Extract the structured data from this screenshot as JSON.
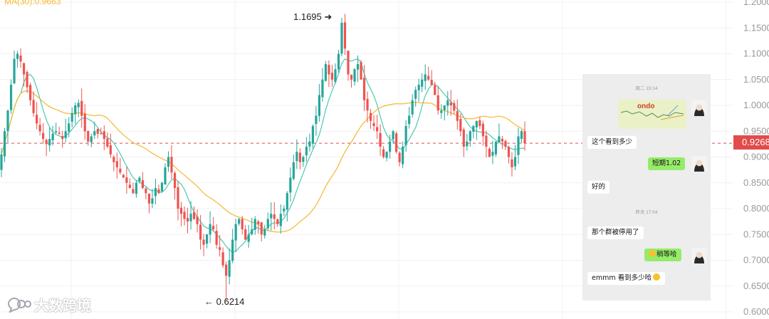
{
  "indicator_label": "MA(30):0.9663",
  "annotations": {
    "high": "1.1695",
    "low": "0.6214"
  },
  "current_price": "0.9268",
  "watermark_text": "大数跨境",
  "colors": {
    "up": "#26a69a",
    "down": "#ef5350",
    "ma_fast": "#4ec9b0",
    "ma_slow": "#f5b82e",
    "price_line": "#e24b4b"
  },
  "chat": {
    "time_1": "周二 15:14",
    "image_label": "ondo",
    "msg_1": "这个看到多少",
    "msg_2": "短期1.02",
    "msg_3": "好的",
    "time_2": "昨天 17:04",
    "msg_4": "那个群被停用了",
    "msg_5": "稍等哈",
    "msg_6": "emmm 看到多少哈"
  },
  "chart_data": {
    "type": "candlestick",
    "y_axis": {
      "min": 0.6,
      "max": 1.2,
      "side": "right",
      "ticks": [
        "1.2000",
        "1.1500",
        "1.1000",
        "1.0500",
        "1.0000",
        "0.9500",
        "0.9000",
        "0.8500",
        "0.8000",
        "0.7500",
        "0.7000",
        "0.6500",
        "0.6000"
      ]
    },
    "grid": true,
    "series": [
      {
        "name": "MA(30)",
        "last": 0.9663
      }
    ],
    "close": [
      0.905,
      0.95,
      0.99,
      1.04,
      1.09,
      1.1,
      1.085,
      1.06,
      1.035,
      1.01,
      0.985,
      0.965,
      0.95,
      0.935,
      0.925,
      0.935,
      0.945,
      0.95,
      0.945,
      0.935,
      0.95,
      0.965,
      0.985,
      1.0,
      1.005,
      0.98,
      0.95,
      0.93,
      0.94,
      0.95,
      0.945,
      0.945,
      0.935,
      0.92,
      0.905,
      0.89,
      0.88,
      0.87,
      0.86,
      0.85,
      0.84,
      0.83,
      0.85,
      0.86,
      0.84,
      0.83,
      0.81,
      0.82,
      0.84,
      0.83,
      0.85,
      0.88,
      0.9,
      0.87,
      0.84,
      0.8,
      0.79,
      0.78,
      0.775,
      0.79,
      0.78,
      0.77,
      0.74,
      0.73,
      0.75,
      0.77,
      0.76,
      0.73,
      0.72,
      0.69,
      0.67,
      0.7,
      0.74,
      0.77,
      0.78,
      0.76,
      0.74,
      0.75,
      0.76,
      0.78,
      0.77,
      0.75,
      0.76,
      0.78,
      0.79,
      0.78,
      0.77,
      0.79,
      0.8,
      0.83,
      0.86,
      0.89,
      0.91,
      0.89,
      0.9,
      0.92,
      0.93,
      0.96,
      0.98,
      1.02,
      1.05,
      1.08,
      1.06,
      1.05,
      1.07,
      1.1,
      1.16,
      1.11,
      1.06,
      1.05,
      1.07,
      1.08,
      1.05,
      1.01,
      0.99,
      0.97,
      0.96,
      0.95,
      0.92,
      0.9,
      0.91,
      0.93,
      0.95,
      0.91,
      0.89,
      0.92,
      0.96,
      0.98,
      1.01,
      1.03,
      1.04,
      1.05,
      1.06,
      1.05,
      1.04,
      1.02,
      0.99,
      0.99,
      1.0,
      1.01,
      1.0,
      0.99,
      0.97,
      0.95,
      0.92,
      0.93,
      0.95,
      0.96,
      0.97,
      0.96,
      0.94,
      0.92,
      0.9,
      0.91,
      0.93,
      0.94,
      0.93,
      0.92,
      0.9,
      0.88,
      0.9,
      0.94,
      0.95,
      0.9268
    ],
    "last_close": 0.9268,
    "high_label": 1.1695,
    "low_label": 0.6214
  }
}
